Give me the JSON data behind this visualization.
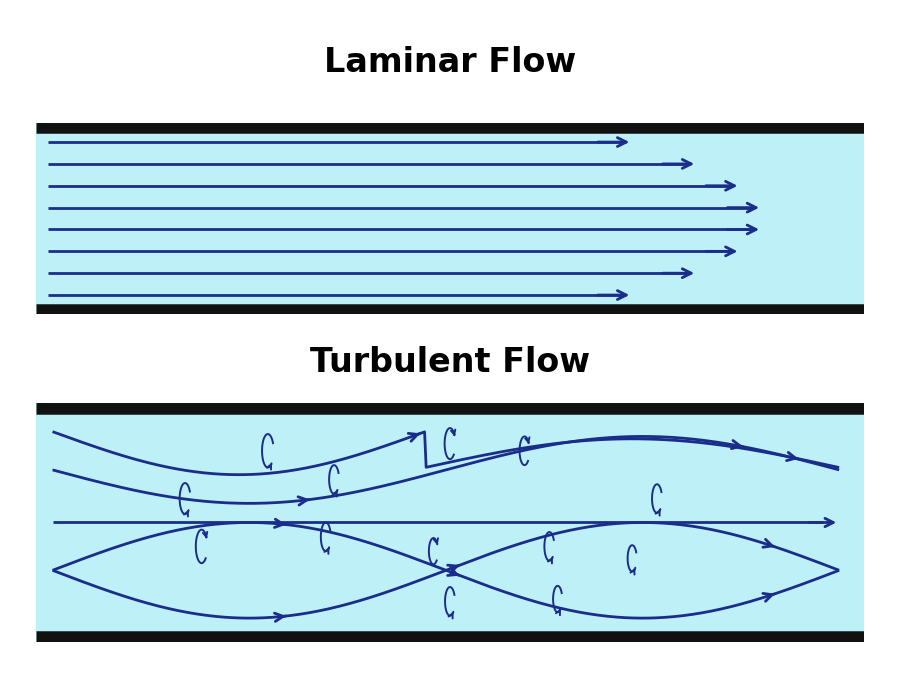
{
  "bg_color": "#ffffff",
  "flow_bg": "#bef0f8",
  "pipe_border": "#111111",
  "arrow_color": "#1a2d8a",
  "title_laminar": "Laminar Flow",
  "title_turbulent": "Turbulent Flow",
  "title_fontsize": 24,
  "title_fontweight": "bold",
  "fig_width": 9.0,
  "fig_height": 6.83,
  "dpi": 100
}
